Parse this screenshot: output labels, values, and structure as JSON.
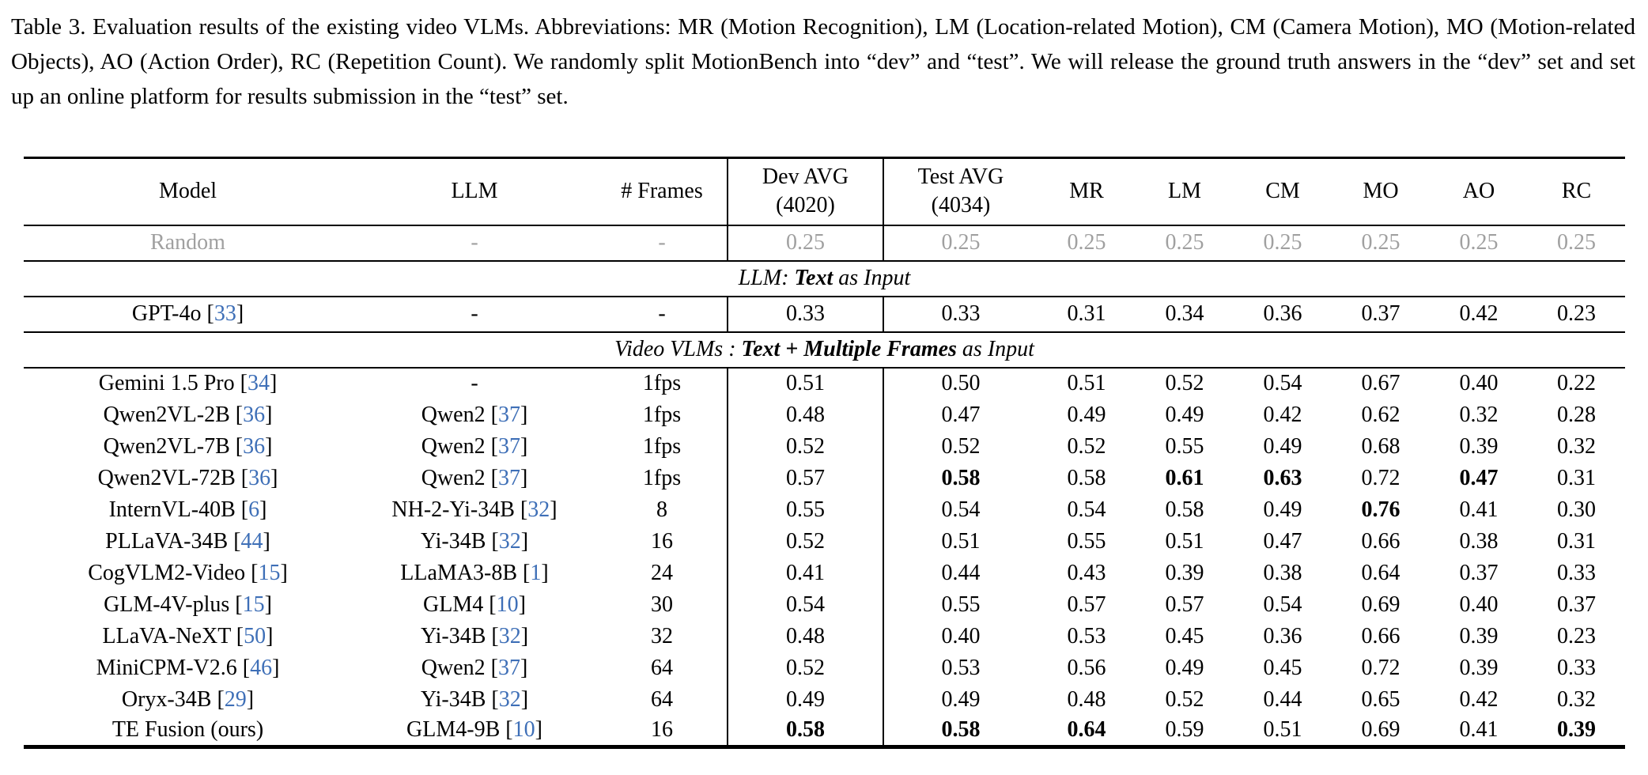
{
  "caption": {
    "text": "Table 3. Evaluation results of the existing video VLMs. Abbreviations: MR (Motion Recognition), LM (Location-related Motion), CM (Camera Motion), MO (Motion-related Objects), AO (Action Order), RC (Repetition Count). We randomly split MotionBench into “dev” and “test”. We will release the ground truth answers in the “dev” set and set up an online platform for results submission in the “test” set."
  },
  "colors": {
    "citation_blue": "#3e6fb7",
    "muted_gray": "#a0a0a0",
    "text": "#000000"
  },
  "cite_format": {
    "open": " [",
    "close": "]"
  },
  "table": {
    "headers": {
      "model": "Model",
      "llm": "LLM",
      "frames": "# Frames",
      "dev_line1": "Dev AVG",
      "dev_line2": "(4020)",
      "test_line1": "Test AVG",
      "test_line2": "(4034)",
      "mr": "MR",
      "lm": "LM",
      "cm": "CM",
      "mo": "MO",
      "ao": "AO",
      "rc": "RC"
    },
    "body": [
      {
        "type": "model",
        "gray": true,
        "rule_below": true,
        "model": "Random",
        "llm": "-",
        "frames": "-",
        "dev": "0.25",
        "test": "0.25",
        "mr": "0.25",
        "lm": "0.25",
        "cm": "0.25",
        "mo": "0.25",
        "ao": "0.25",
        "rc": "0.25"
      },
      {
        "type": "section",
        "rule_below": true,
        "parts": [
          {
            "text": "LLM: ",
            "bold": false
          },
          {
            "text": "Text",
            "bold": true
          },
          {
            "text": " as Input",
            "bold": false
          }
        ]
      },
      {
        "type": "model",
        "rule_below": true,
        "model": "GPT-4o",
        "model_cite": "33",
        "llm": "-",
        "frames": "-",
        "dev": "0.33",
        "test": "0.33",
        "mr": "0.31",
        "lm": "0.34",
        "cm": "0.36",
        "mo": "0.37",
        "ao": "0.42",
        "rc": "0.23"
      },
      {
        "type": "section",
        "rule_below": true,
        "parts": [
          {
            "text": "Video VLMs : ",
            "bold": false
          },
          {
            "text": "Text + Multiple Frames",
            "bold": true
          },
          {
            "text": " as Input",
            "bold": false
          }
        ]
      },
      {
        "type": "model",
        "model": "Gemini 1.5 Pro",
        "model_cite": "34",
        "llm": "-",
        "frames": "1fps",
        "dev": "0.51",
        "test": "0.50",
        "mr": "0.51",
        "lm": "0.52",
        "cm": "0.54",
        "mo": "0.67",
        "ao": "0.40",
        "rc": "0.22"
      },
      {
        "type": "model",
        "model": "Qwen2VL-2B",
        "model_cite": "36",
        "llm": "Qwen2",
        "llm_cite": "37",
        "frames": "1fps",
        "dev": "0.48",
        "test": "0.47",
        "mr": "0.49",
        "lm": "0.49",
        "cm": "0.42",
        "mo": "0.62",
        "ao": "0.32",
        "rc": "0.28"
      },
      {
        "type": "model",
        "model": "Qwen2VL-7B",
        "model_cite": "36",
        "llm": "Qwen2",
        "llm_cite": "37",
        "frames": "1fps",
        "dev": "0.52",
        "test": "0.52",
        "mr": "0.52",
        "lm": "0.55",
        "cm": "0.49",
        "mo": "0.68",
        "ao": "0.39",
        "rc": "0.32"
      },
      {
        "type": "model",
        "model": "Qwen2VL-72B",
        "model_cite": "36",
        "llm": "Qwen2",
        "llm_cite": "37",
        "frames": "1fps",
        "dev": "0.57",
        "test": "0.58",
        "mr": "0.58",
        "lm": "0.61",
        "cm": "0.63",
        "mo": "0.72",
        "ao": "0.47",
        "rc": "0.31",
        "bold": [
          "test",
          "lm",
          "cm",
          "ao"
        ]
      },
      {
        "type": "model",
        "model": "InternVL-40B",
        "model_cite": "6",
        "llm": "NH-2-Yi-34B",
        "llm_cite": "32",
        "frames": "8",
        "dev": "0.55",
        "test": "0.54",
        "mr": "0.54",
        "lm": "0.58",
        "cm": "0.49",
        "mo": "0.76",
        "ao": "0.41",
        "rc": "0.30",
        "bold": [
          "mo"
        ]
      },
      {
        "type": "model",
        "model": "PLLaVA-34B",
        "model_cite": "44",
        "llm": "Yi-34B",
        "llm_cite": "32",
        "frames": "16",
        "dev": "0.52",
        "test": "0.51",
        "mr": "0.55",
        "lm": "0.51",
        "cm": "0.47",
        "mo": "0.66",
        "ao": "0.38",
        "rc": "0.31"
      },
      {
        "type": "model",
        "model": "CogVLM2-Video",
        "model_cite": "15",
        "llm": "LLaMA3-8B",
        "llm_cite": "1",
        "frames": "24",
        "dev": "0.41",
        "test": "0.44",
        "mr": "0.43",
        "lm": "0.39",
        "cm": "0.38",
        "mo": "0.64",
        "ao": "0.37",
        "rc": "0.33"
      },
      {
        "type": "model",
        "model": "GLM-4V-plus",
        "model_cite": "15",
        "llm": "GLM4",
        "llm_cite": "10",
        "frames": "30",
        "dev": "0.54",
        "test": "0.55",
        "mr": "0.57",
        "lm": "0.57",
        "cm": "0.54",
        "mo": "0.69",
        "ao": "0.40",
        "rc": "0.37"
      },
      {
        "type": "model",
        "model": "LLaVA-NeXT",
        "model_cite": "50",
        "llm": "Yi-34B",
        "llm_cite": "32",
        "frames": "32",
        "dev": "0.48",
        "test": "0.40",
        "mr": "0.53",
        "lm": "0.45",
        "cm": "0.36",
        "mo": "0.66",
        "ao": "0.39",
        "rc": "0.23"
      },
      {
        "type": "model",
        "model": "MiniCPM-V2.6",
        "model_cite": "46",
        "llm": "Qwen2",
        "llm_cite": "37",
        "frames": "64",
        "dev": "0.52",
        "test": "0.53",
        "mr": "0.56",
        "lm": "0.49",
        "cm": "0.45",
        "mo": "0.72",
        "ao": "0.39",
        "rc": "0.33"
      },
      {
        "type": "model",
        "model": "Oryx-34B",
        "model_cite": "29",
        "llm": "Yi-34B",
        "llm_cite": "32",
        "frames": "64",
        "dev": "0.49",
        "test": "0.49",
        "mr": "0.48",
        "lm": "0.52",
        "cm": "0.44",
        "mo": "0.65",
        "ao": "0.42",
        "rc": "0.32"
      },
      {
        "type": "model",
        "model": "TE Fusion (ours)",
        "llm": "GLM4-9B",
        "llm_cite": "10",
        "frames": "16",
        "dev": "0.58",
        "test": "0.58",
        "mr": "0.64",
        "lm": "0.59",
        "cm": "0.51",
        "mo": "0.69",
        "ao": "0.41",
        "rc": "0.39",
        "bold": [
          "dev",
          "test",
          "mr",
          "rc"
        ]
      }
    ]
  }
}
